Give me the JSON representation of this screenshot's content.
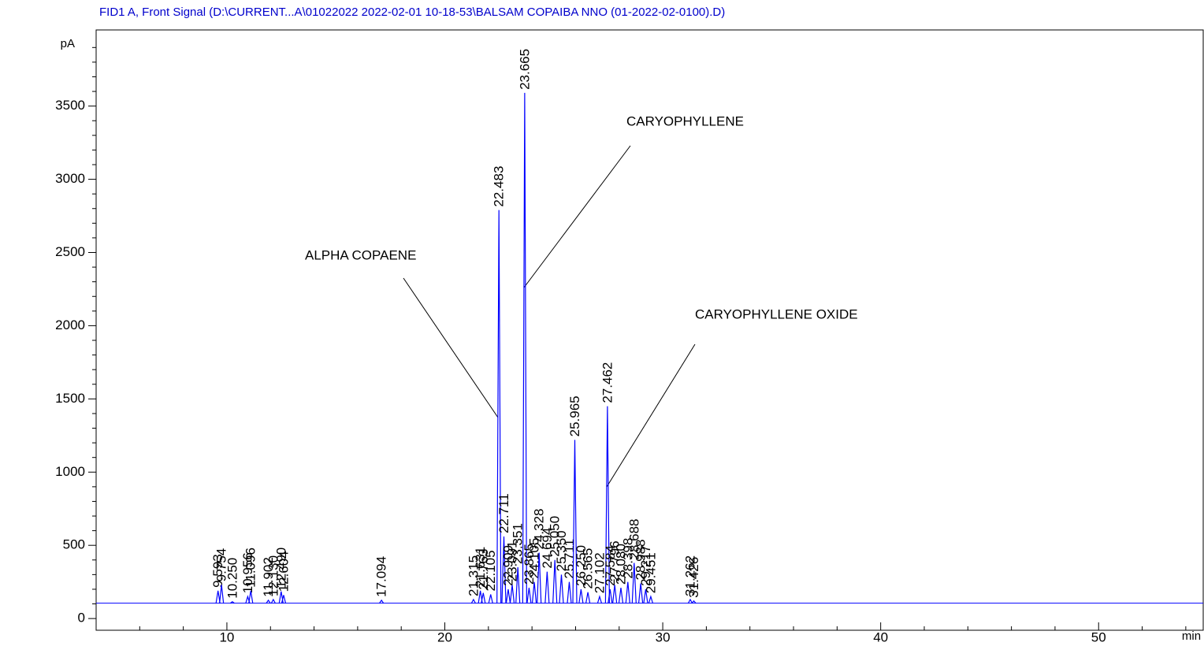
{
  "chart_data": {
    "type": "chromatogram",
    "title": "FID1 A, Front Signal (D:\\CURRENT...A\\01022022 2022-02-01 10-18-53\\BALSAM COPAIBA NNO (01-2022-02-0100).D)",
    "y_label": "pA",
    "x_label": "min",
    "color": "#0000ff",
    "baseline": 105,
    "xlim": [
      4,
      54.8
    ],
    "ylim": [
      -80,
      4020
    ],
    "xticks": [
      10,
      20,
      30,
      40,
      50
    ],
    "yticks": [
      0,
      500,
      1000,
      1500,
      2000,
      2500,
      3000,
      3500
    ],
    "xminorticks": [
      6,
      8,
      12,
      14,
      16,
      18,
      22,
      24,
      26,
      28,
      32,
      34,
      36,
      38,
      42,
      44,
      46,
      48,
      52,
      54
    ],
    "yminorticks": [
      100,
      200,
      300,
      400,
      600,
      700,
      800,
      900,
      1100,
      1200,
      1300,
      1400,
      1600,
      1700,
      1800,
      1900,
      2100,
      2200,
      2300,
      2400,
      2600,
      2700,
      2800,
      2900,
      3100,
      3200,
      3300,
      3400,
      3600,
      3700,
      3800,
      3900
    ],
    "x": [
      {
        "value": 9.593,
        "label": "9.593"
      },
      {
        "value": 9.754,
        "label": "9.754"
      },
      {
        "value": 10.25,
        "label": "10.250"
      },
      {
        "value": 10.956,
        "label": "10.956"
      },
      {
        "value": 11.096,
        "label": "11.096"
      },
      {
        "value": 11.902,
        "label": "11.902"
      },
      {
        "value": 12.13,
        "label": "12.130"
      },
      {
        "value": 12.49,
        "label": "12.490"
      },
      {
        "value": 12.604,
        "label": "12.604"
      },
      {
        "value": 17.094,
        "label": "17.094"
      },
      {
        "value": 21.315,
        "label": "21.315"
      },
      {
        "value": 21.631,
        "label": "21.631"
      },
      {
        "value": 21.763,
        "label": "21.763"
      },
      {
        "value": 22.105,
        "label": "22.105"
      },
      {
        "value": 22.483,
        "label": "22.483"
      },
      {
        "value": 22.711,
        "label": "22.711"
      },
      {
        "value": 22.909,
        "label": "22.909"
      },
      {
        "value": 23.091,
        "label": "23.091"
      },
      {
        "value": 23.351,
        "label": "23.351"
      },
      {
        "value": 23.665,
        "label": "23.665"
      },
      {
        "value": 23.865,
        "label": "23.865"
      },
      {
        "value": 24.105,
        "label": "24.105"
      },
      {
        "value": 24.328,
        "label": "24.328"
      },
      {
        "value": 24.694,
        "label": "24.694"
      },
      {
        "value": 25.05,
        "label": "25.050"
      },
      {
        "value": 25.35,
        "label": "25.350"
      },
      {
        "value": 25.711,
        "label": "25.711"
      },
      {
        "value": 25.965,
        "label": "25.965"
      },
      {
        "value": 26.25,
        "label": "26.250"
      },
      {
        "value": 26.565,
        "label": "26.565"
      },
      {
        "value": 27.102,
        "label": "27.102"
      },
      {
        "value": 27.462,
        "label": "27.462"
      },
      {
        "value": 27.584,
        "label": "27.584"
      },
      {
        "value": 27.796,
        "label": "27.796"
      },
      {
        "value": 28.08,
        "label": "28.080"
      },
      {
        "value": 28.398,
        "label": "28.398"
      },
      {
        "value": 28.688,
        "label": "28.688"
      },
      {
        "value": 28.988,
        "label": "28.988"
      },
      {
        "value": 29.217,
        "label": "29.217"
      },
      {
        "value": 29.451,
        "label": "29.451"
      },
      {
        "value": 31.262,
        "label": "31.262"
      },
      {
        "value": 31.426,
        "label": "31.426"
      }
    ],
    "values": [
      190,
      230,
      115,
      150,
      190,
      125,
      130,
      185,
      160,
      125,
      130,
      190,
      175,
      165,
      2790,
      560,
      200,
      230,
      350,
      3590,
      210,
      250,
      450,
      320,
      400,
      300,
      250,
      1220,
      200,
      180,
      150,
      1450,
      200,
      230,
      210,
      250,
      380,
      240,
      200,
      150,
      130,
      120
    ],
    "annotations": [
      {
        "text": "ALPHA COPAENE"
      },
      {
        "text": "CARYOPHYLLENE"
      },
      {
        "text": "CARYOPHYLLENE OXIDE"
      }
    ]
  }
}
